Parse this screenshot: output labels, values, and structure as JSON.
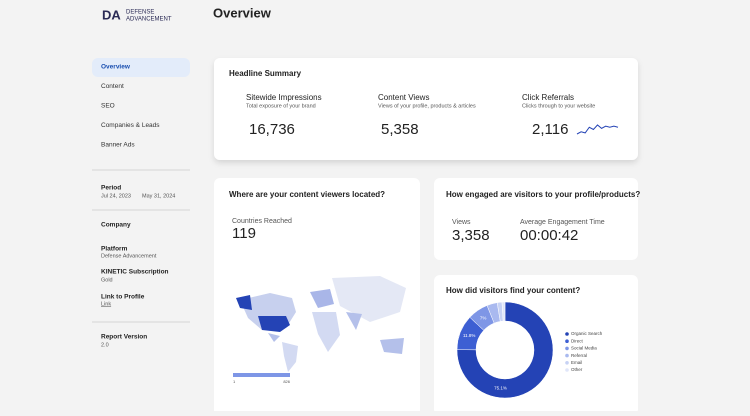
{
  "header": {
    "logo_initials": "DA",
    "logo_line1": "DEFENSE",
    "logo_line2": "ADVANCEMENT",
    "title": "Overview"
  },
  "nav": [
    "Overview",
    "Content",
    "SEO",
    "Companies & Leads",
    "Banner Ads"
  ],
  "sidebar": {
    "period_label": "Period",
    "period_start": "Jul 24, 2023",
    "period_end": "May 31, 2024",
    "company_label": "Company",
    "platform_label": "Platform",
    "platform_value": "Defense Advancement",
    "subscription_label": "KINETIC Subscription",
    "subscription_value": "Gold",
    "profile_label": "Link to Profile",
    "profile_value": "Link",
    "version_label": "Report Version",
    "version_value": "2.0"
  },
  "headline": {
    "title": "Headline Summary",
    "metrics": [
      {
        "label": "Sitewide Impressions",
        "sub": "Total exposure of your brand",
        "value": "16,736"
      },
      {
        "label": "Content Views",
        "sub": "Views of your profile, products & articles",
        "value": "5,358"
      },
      {
        "label": "Click Referrals",
        "sub": "Clicks through to your website",
        "value": "2,116"
      }
    ],
    "trend": [
      2,
      3,
      2.5,
      5,
      4,
      6,
      4.5,
      5.5,
      5,
      5.5,
      5
    ]
  },
  "location": {
    "title": "Where are your content viewers located?",
    "label": "Countries Reached",
    "value": "119",
    "legend_min": "1",
    "legend_max": "826"
  },
  "engagement": {
    "title": "How engaged are visitors to your profile/products?",
    "views_label": "Views",
    "views_value": "3,358",
    "time_label": "Average Engagement Time",
    "time_value": "00:00:42"
  },
  "traffic_sources": {
    "title": "How did visitors find your content?",
    "categories": [
      "Organic Search",
      "Direct",
      "Social Media",
      "Referral",
      "Email",
      "Other"
    ],
    "values": [
      75.1,
      11.8,
      7,
      3.5,
      1.6,
      1
    ],
    "value_labels": [
      "75.1%",
      "11.8%",
      "7%",
      null,
      null,
      null
    ],
    "colors": [
      "#2443b5",
      "#3d5fd3",
      "#7e96e6",
      "#a9b9ef",
      "#c7d2f4",
      "#e0e6f9"
    ]
  }
}
